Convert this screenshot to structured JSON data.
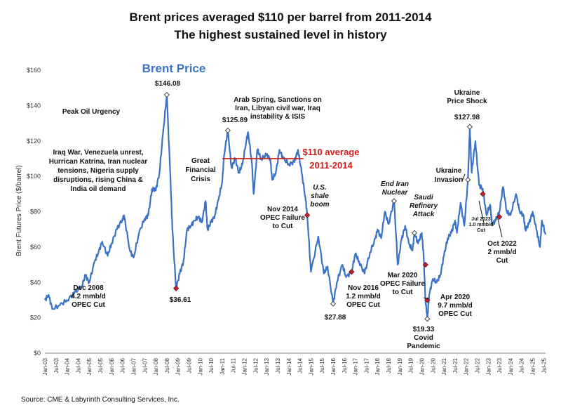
{
  "chart_data": {
    "type": "line",
    "title": "Brent prices averaged $110 per barrel from 2011-2014",
    "subtitle": "The highest sustained level in history",
    "series_label": "Brent Price",
    "ylabel": "Brent Futures Price ($/barrel)",
    "xlabel": "",
    "ylim": [
      0,
      160
    ],
    "xlim": [
      "2003-01",
      "2025-08"
    ],
    "grid": false,
    "line_color": "#3b72c4",
    "y_ticks": [
      "$0",
      "$20",
      "$40",
      "$60",
      "$80",
      "$100",
      "$120",
      "$140",
      "$160"
    ],
    "x_ticks": [
      "Jan-03",
      "Jul-03",
      "Jan-04",
      "Jul-04",
      "Jan-05",
      "Jul-05",
      "Jan-06",
      "Jul-06",
      "Jan-07",
      "Jul-07",
      "Jan-08",
      "Jul-08",
      "Jan-09",
      "Jul-09",
      "Jan-10",
      "Jul-10",
      "Jan-11",
      "Jul-11",
      "Jan-12",
      "Jul-12",
      "Jan-13",
      "Jul-13",
      "Jan-14",
      "Jul-14",
      "Jan-15",
      "Jul-15",
      "Jan-16",
      "Jul-16",
      "Jan-17",
      "Jul-17",
      "Jan-18",
      "Jul-18",
      "Jan-19",
      "Jul-19",
      "Jan-20",
      "Jul-20",
      "Jan-21",
      "Jul-21",
      "Jan-22",
      "Jul-22",
      "Jan-23",
      "Jul-23",
      "Jan-24",
      "Jul-24",
      "Jan-25",
      "Jul-25"
    ],
    "points": [
      [
        "2003-01",
        30
      ],
      [
        "2003-03",
        33
      ],
      [
        "2003-05",
        25
      ],
      [
        "2003-09",
        27
      ],
      [
        "2004-01",
        30
      ],
      [
        "2004-05",
        34
      ],
      [
        "2004-09",
        38
      ],
      [
        "2004-11",
        44
      ],
      [
        "2005-01",
        40
      ],
      [
        "2005-04",
        52
      ],
      [
        "2005-06",
        57
      ],
      [
        "2005-08",
        63
      ],
      [
        "2005-11",
        55
      ],
      [
        "2006-01",
        62
      ],
      [
        "2006-04",
        70
      ],
      [
        "2006-07",
        76
      ],
      [
        "2006-08",
        77
      ],
      [
        "2006-11",
        58
      ],
      [
        "2007-01",
        54
      ],
      [
        "2007-04",
        68
      ],
      [
        "2007-07",
        76
      ],
      [
        "2007-09",
        78
      ],
      [
        "2007-11",
        93
      ],
      [
        "2008-01",
        92
      ],
      [
        "2008-03",
        102
      ],
      [
        "2008-05",
        125
      ],
      [
        "2008-07",
        146.08
      ],
      [
        "2008-09",
        98
      ],
      [
        "2008-10",
        70
      ],
      [
        "2008-12",
        36.61
      ],
      [
        "2009-02",
        45
      ],
      [
        "2009-04",
        52
      ],
      [
        "2009-06",
        70
      ],
      [
        "2009-08",
        72
      ],
      [
        "2009-10",
        75
      ],
      [
        "2009-12",
        77
      ],
      [
        "2010-02",
        74
      ],
      [
        "2010-04",
        86
      ],
      [
        "2010-05",
        70
      ],
      [
        "2010-07",
        74
      ],
      [
        "2010-09",
        78
      ],
      [
        "2010-11",
        87
      ],
      [
        "2011-01",
        97
      ],
      [
        "2011-02",
        112
      ],
      [
        "2011-04",
        125.89
      ],
      [
        "2011-06",
        105
      ],
      [
        "2011-08",
        110
      ],
      [
        "2011-10",
        102
      ],
      [
        "2011-12",
        107
      ],
      [
        "2012-02",
        120
      ],
      [
        "2012-03",
        125
      ],
      [
        "2012-05",
        108
      ],
      [
        "2012-06",
        90
      ],
      [
        "2012-08",
        115
      ],
      [
        "2012-10",
        110
      ],
      [
        "2013-01",
        112
      ],
      [
        "2013-03",
        110
      ],
      [
        "2013-04",
        98
      ],
      [
        "2013-06",
        102
      ],
      [
        "2013-08",
        115
      ],
      [
        "2013-10",
        110
      ],
      [
        "2014-01",
        107
      ],
      [
        "2014-04",
        108
      ],
      [
        "2014-06",
        115
      ],
      [
        "2014-08",
        102
      ],
      [
        "2014-10",
        88
      ],
      [
        "2014-11",
        78
      ],
      [
        "2015-01",
        46
      ],
      [
        "2015-05",
        66
      ],
      [
        "2015-08",
        45
      ],
      [
        "2015-10",
        49
      ],
      [
        "2016-01",
        27.88
      ],
      [
        "2016-03",
        40
      ],
      [
        "2016-06",
        50
      ],
      [
        "2016-08",
        43
      ],
      [
        "2016-11",
        46
      ],
      [
        "2017-01",
        56
      ],
      [
        "2017-03",
        52
      ],
      [
        "2017-06",
        45
      ],
      [
        "2017-09",
        57
      ],
      [
        "2017-12",
        65
      ],
      [
        "2018-01",
        70
      ],
      [
        "2018-03",
        65
      ],
      [
        "2018-05",
        80
      ],
      [
        "2018-07",
        73
      ],
      [
        "2018-10",
        86
      ],
      [
        "2018-12",
        50
      ],
      [
        "2019-02",
        64
      ],
      [
        "2019-04",
        72
      ],
      [
        "2019-06",
        62
      ],
      [
        "2019-08",
        58
      ],
      [
        "2019-09",
        68
      ],
      [
        "2019-11",
        62
      ],
      [
        "2020-01",
        68
      ],
      [
        "2020-02",
        55
      ],
      [
        "2020-03",
        30
      ],
      [
        "2020-04",
        19.33
      ],
      [
        "2020-05",
        33
      ],
      [
        "2020-07",
        42
      ],
      [
        "2020-09",
        40
      ],
      [
        "2020-11",
        44
      ],
      [
        "2021-01",
        55
      ],
      [
        "2021-03",
        65
      ],
      [
        "2021-05",
        68
      ],
      [
        "2021-07",
        75
      ],
      [
        "2021-08",
        68
      ],
      [
        "2021-10",
        85
      ],
      [
        "2021-12",
        72
      ],
      [
        "2022-02",
        98
      ],
      [
        "2022-03",
        127.98
      ],
      [
        "2022-04",
        102
      ],
      [
        "2022-06",
        120
      ],
      [
        "2022-08",
        95
      ],
      [
        "2022-10",
        93
      ],
      [
        "2022-12",
        78
      ],
      [
        "2023-02",
        84
      ],
      [
        "2023-03",
        73
      ],
      [
        "2023-05",
        75
      ],
      [
        "2023-07",
        80
      ],
      [
        "2023-09",
        94
      ],
      [
        "2023-11",
        80
      ],
      [
        "2024-01",
        78
      ],
      [
        "2024-04",
        90
      ],
      [
        "2024-06",
        80
      ],
      [
        "2024-08",
        78
      ],
      [
        "2024-09",
        70
      ],
      [
        "2024-11",
        73
      ],
      [
        "2025-01",
        80
      ],
      [
        "2025-03",
        70
      ],
      [
        "2025-05",
        60
      ],
      [
        "2025-06",
        75
      ],
      [
        "2025-08",
        67
      ]
    ],
    "average_line": {
      "label_line1": "$110 average",
      "label_line2": "2011-2014",
      "value": 110,
      "from": "2011-01",
      "to": "2014-09",
      "color": "#d11a1a"
    },
    "annotations": [
      {
        "id": "peak-oil",
        "lines": [
          "Peak Oil Urgency"
        ],
        "style": "bold"
      },
      {
        "id": "peak-2008",
        "lines": [
          "$146.08"
        ],
        "style": "bold"
      },
      {
        "id": "iraq-war",
        "lines": [
          "Iraq War, Venezuela unrest,",
          "Hurrican Katrina, Iran nuclear",
          "tensions, Nigeria supply",
          "disruptions, rising China &",
          "India oil demand"
        ],
        "style": "bold"
      },
      {
        "id": "dec-2008",
        "lines": [
          "Dec 2008",
          "4.2 mmb/d",
          "OPEC Cut"
        ],
        "style": "bold"
      },
      {
        "id": "low-2008",
        "lines": [
          "$36.61"
        ],
        "style": "bold"
      },
      {
        "id": "gfc",
        "lines": [
          "Great",
          "Financial",
          "Crisis"
        ],
        "style": "bold"
      },
      {
        "id": "arab-spring",
        "lines": [
          "Arab Spring, Sanctions on",
          "Iran, Libyan civil war, Iraq",
          "instability & ISIS"
        ],
        "style": "bold"
      },
      {
        "id": "peak-2011",
        "lines": [
          "$125.89"
        ],
        "style": "bold"
      },
      {
        "id": "shale",
        "lines": [
          "U.S.",
          "shale",
          "boom"
        ],
        "style": "italic"
      },
      {
        "id": "nov-2014",
        "lines": [
          "Nov 2014",
          "OPEC Failure",
          "to Cut"
        ],
        "style": "bold"
      },
      {
        "id": "low-2016",
        "lines": [
          "$27.88"
        ],
        "style": "bold"
      },
      {
        "id": "nov-2016",
        "lines": [
          "Nov 2016",
          "1.2 mmb/d",
          "OPEC Cut"
        ],
        "style": "bold"
      },
      {
        "id": "end-iran",
        "lines": [
          "End Iran",
          "Nuclear"
        ],
        "style": "italic"
      },
      {
        "id": "saudi",
        "lines": [
          "Saudi",
          "Refinery",
          "Attack"
        ],
        "style": "italic"
      },
      {
        "id": "mar-2020",
        "lines": [
          "Mar 2020",
          "OPEC Failure",
          "to Cut"
        ],
        "style": "bold"
      },
      {
        "id": "apr-2020",
        "lines": [
          "Apr 2020",
          "9.7 mmb/d",
          "OPEC Cut"
        ],
        "style": "bold"
      },
      {
        "id": "covid",
        "lines": [
          "$19.33",
          "Covid",
          "Pandemic"
        ],
        "style": "bold"
      },
      {
        "id": "ukraine-shock",
        "lines": [
          "Ukraine",
          "Price Shock"
        ],
        "style": "bold"
      },
      {
        "id": "peak-2022",
        "lines": [
          "$127.98"
        ],
        "style": "bold"
      },
      {
        "id": "ukraine-inv",
        "lines": [
          "Ukraine",
          "Invasion"
        ],
        "style": "bold"
      },
      {
        "id": "jul-2023",
        "lines": [
          "Jul 2023",
          "1.0 mmb/d",
          "Cut"
        ],
        "style": "small"
      },
      {
        "id": "oct-2022",
        "lines": [
          "Oct 2022",
          "2 mmb/d",
          "Cut"
        ],
        "style": "bold"
      }
    ],
    "markers": [
      {
        "x": "2008-07",
        "y": 146.08,
        "kind": "open"
      },
      {
        "x": "2008-12",
        "y": 36.61,
        "kind": "red"
      },
      {
        "x": "2011-04",
        "y": 125.89,
        "kind": "open"
      },
      {
        "x": "2014-11",
        "y": 78,
        "kind": "red"
      },
      {
        "x": "2016-01",
        "y": 27.88,
        "kind": "open"
      },
      {
        "x": "2016-11",
        "y": 46,
        "kind": "red"
      },
      {
        "x": "2018-10",
        "y": 86,
        "kind": "open"
      },
      {
        "x": "2019-09",
        "y": 68,
        "kind": "open"
      },
      {
        "x": "2020-03",
        "y": 50,
        "kind": "red"
      },
      {
        "x": "2020-04",
        "y": 19.33,
        "kind": "open"
      },
      {
        "x": "2020-04",
        "y": 30,
        "kind": "red"
      },
      {
        "x": "2022-02",
        "y": 98,
        "kind": "open"
      },
      {
        "x": "2022-03",
        "y": 127.98,
        "kind": "open"
      },
      {
        "x": "2022-10",
        "y": 90,
        "kind": "red"
      },
      {
        "x": "2023-07",
        "y": 77,
        "kind": "red"
      }
    ]
  },
  "footer": {
    "source": "Source: CME & Labyrinth Consulting Services, Inc."
  }
}
